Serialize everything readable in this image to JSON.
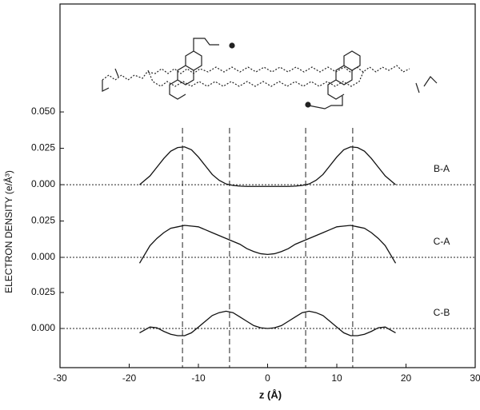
{
  "axes": {
    "xlabel": "z  (Å)",
    "ylabel": "ELECTRON DENSITY (e/Å³)",
    "xlim": [
      -30,
      30
    ],
    "xticks": [
      -30,
      -20,
      -10,
      0,
      10,
      20,
      30
    ],
    "reference_lines": [
      -12.3,
      -5.5,
      5.5,
      12.3
    ]
  },
  "chart_data": [
    {
      "type": "line",
      "label": "B-A",
      "color": "#111111",
      "x": [
        -18.5,
        -17,
        -16,
        -15,
        -14,
        -13,
        -12,
        -11,
        -10,
        -9,
        -8,
        -7,
        -6,
        -5,
        -4,
        -3,
        -2,
        -1,
        0,
        1,
        2,
        3,
        4,
        5,
        6,
        7,
        8,
        9,
        10,
        11,
        12,
        13,
        14,
        15,
        16,
        17,
        18.5
      ],
      "values": [
        0,
        0.006,
        0.012,
        0.018,
        0.023,
        0.0255,
        0.026,
        0.024,
        0.019,
        0.013,
        0.007,
        0.003,
        0.0005,
        -0.0005,
        -0.001,
        -0.0012,
        -0.0012,
        -0.0012,
        -0.0012,
        -0.0012,
        -0.0012,
        -0.0012,
        -0.001,
        -0.0005,
        0.0005,
        0.003,
        0.007,
        0.013,
        0.019,
        0.024,
        0.026,
        0.0255,
        0.023,
        0.018,
        0.012,
        0.006,
        0
      ],
      "ylim": [
        -0.0126,
        0.1242
      ],
      "yticks": [
        {
          "value": 0,
          "label": "0.000"
        },
        0.025,
        {
          "value": 0.05,
          "label": "0.050"
        }
      ]
    },
    {
      "type": "line",
      "label": "C-A",
      "color": "#111111",
      "x": [
        -18.5,
        -17,
        -16,
        -15,
        -14,
        -13,
        -12,
        -11,
        -10,
        -9,
        -8,
        -7,
        -6,
        -5,
        -4,
        -3,
        -2,
        -1,
        0,
        1,
        2,
        3,
        4,
        5,
        6,
        7,
        8,
        9,
        10,
        11,
        12,
        13,
        14,
        15,
        16,
        17,
        18.5
      ],
      "values": [
        -0.004,
        0.008,
        0.013,
        0.017,
        0.02,
        0.021,
        0.022,
        0.0215,
        0.021,
        0.019,
        0.017,
        0.015,
        0.013,
        0.011,
        0.009,
        0.006,
        0.004,
        0.0025,
        0.002,
        0.0025,
        0.004,
        0.006,
        0.009,
        0.011,
        0.013,
        0.015,
        0.017,
        0.019,
        0.021,
        0.0215,
        0.022,
        0.021,
        0.02,
        0.017,
        0.013,
        0.008,
        -0.004
      ],
      "ylim": [
        -0.0121,
        0.0374
      ],
      "yticks": [
        {
          "value": 0,
          "label": "0.000"
        },
        0.025
      ]
    },
    {
      "type": "line",
      "label": "C-B",
      "color": "#111111",
      "x": [
        -18.5,
        -17,
        -16,
        -15,
        -14,
        -13,
        -12,
        -11,
        -10,
        -9,
        -8,
        -7,
        -6,
        -5,
        -4,
        -3,
        -2,
        -1,
        0,
        1,
        2,
        3,
        4,
        5,
        6,
        7,
        8,
        9,
        10,
        11,
        12,
        13,
        14,
        15,
        16,
        17,
        18.5
      ],
      "values": [
        -0.003,
        0.001,
        0.0005,
        -0.002,
        -0.004,
        -0.005,
        -0.005,
        -0.003,
        0.001,
        0.005,
        0.009,
        0.011,
        0.012,
        0.011,
        0.008,
        0.005,
        0.002,
        0.0005,
        0,
        0.0005,
        0.002,
        0.005,
        0.008,
        0.011,
        0.012,
        0.011,
        0.009,
        0.005,
        0.001,
        -0.003,
        -0.005,
        -0.005,
        -0.004,
        -0.002,
        0.0005,
        0.001,
        -0.003
      ],
      "ylim": [
        -0.0272,
        0.0372
      ],
      "yticks": [
        {
          "value": 0,
          "label": "0.000"
        },
        0.025
      ]
    }
  ]
}
